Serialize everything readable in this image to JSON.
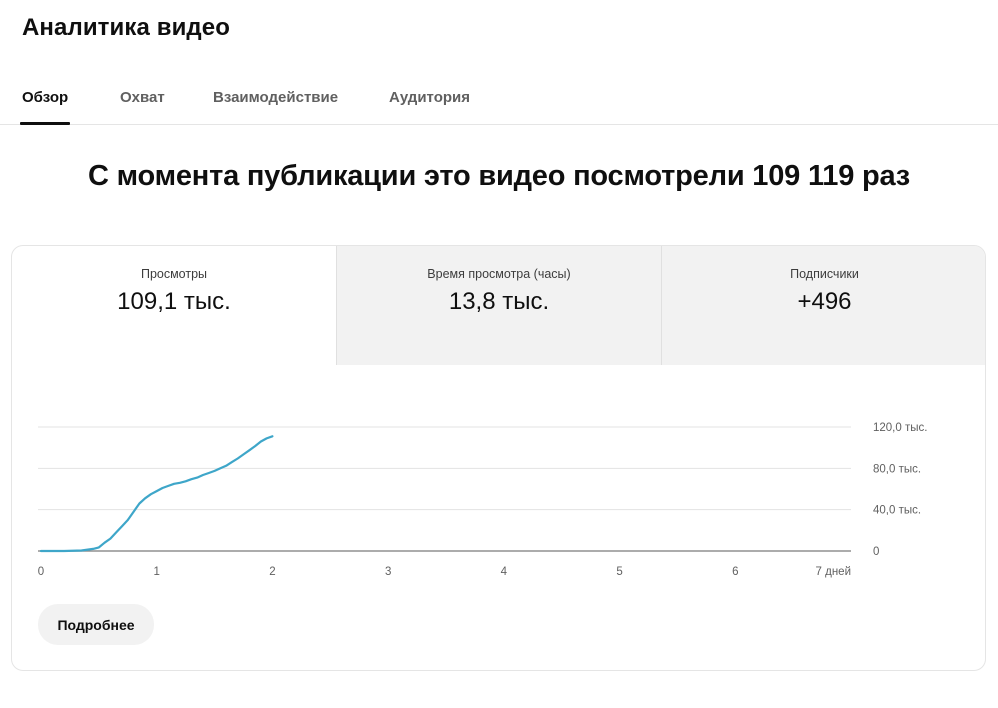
{
  "header": {
    "title": "Аналитика видео"
  },
  "tabs": [
    {
      "label": "Обзор",
      "active": true
    },
    {
      "label": "Охват",
      "active": false
    },
    {
      "label": "Взаимодействие",
      "active": false
    },
    {
      "label": "Аудитория",
      "active": false
    }
  ],
  "headline": "С момента публикации это видео посмотрели 109 119 раз",
  "metrics": [
    {
      "label": "Просмотры",
      "value": "109,1 тыс."
    },
    {
      "label": "Время просмотра (часы)",
      "value": "13,8 тыс."
    },
    {
      "label": "Подписчики",
      "value": "+496"
    }
  ],
  "more_button": "Подробнее",
  "colors": {
    "accent_line": "#3ea6c9",
    "tab_active": "#0f0f0f",
    "inactive_metric_bg": "#f2f2f2"
  },
  "chart_data": {
    "type": "line",
    "title": "",
    "xlabel": "",
    "ylabel": "",
    "xlim": [
      0,
      7
    ],
    "ylim": [
      0,
      120000
    ],
    "x_ticks": [
      "0",
      "1",
      "2",
      "3",
      "4",
      "5",
      "6",
      "7 дней"
    ],
    "y_ticks": [
      "0",
      "40,0 тыс.",
      "80,0 тыс.",
      "120,0 тыс."
    ],
    "y_axis_position": "right",
    "grid": true,
    "series": [
      {
        "name": "",
        "x": [
          0,
          0.2,
          0.35,
          0.45,
          0.5,
          0.55,
          0.6,
          0.65,
          0.7,
          0.75,
          0.8,
          0.85,
          0.9,
          0.95,
          1.0,
          1.05,
          1.1,
          1.15,
          1.2,
          1.25,
          1.3,
          1.35,
          1.4,
          1.45,
          1.5,
          1.55,
          1.6,
          1.65,
          1.7,
          1.75,
          1.8,
          1.85,
          1.9,
          1.95,
          2.0
        ],
        "y": [
          0,
          0,
          500,
          2000,
          3500,
          8000,
          12000,
          18000,
          24000,
          30000,
          38000,
          46000,
          51000,
          55000,
          58000,
          61000,
          63000,
          65000,
          66000,
          67500,
          69500,
          71000,
          73500,
          75500,
          77500,
          80000,
          82500,
          86000,
          89500,
          93500,
          97500,
          101500,
          106000,
          109000,
          111000
        ]
      }
    ]
  }
}
